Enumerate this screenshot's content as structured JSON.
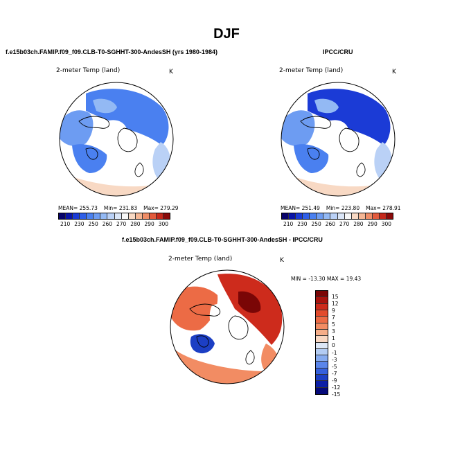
{
  "figure": {
    "season": "DJF"
  },
  "chart_data": [
    {
      "type": "heatmap",
      "projection": "north polar stereographic",
      "title": "f.e15b03ch.FAMIP.f09_f09.CLB-T0-SGHHT-300-AndesSH (yrs 1980-1984)",
      "variable": "2-meter Temp (land)",
      "units": "K",
      "stats": {
        "mean_label": "MEAN= 255.73",
        "min_label": "Min= 231.83",
        "max_label": "Max= 279.29",
        "mean": 255.73,
        "min": 231.83,
        "max": 279.29
      },
      "colorbar": {
        "orientation": "horizontal",
        "tick_labels": [
          "210",
          "230",
          "250",
          "260",
          "270",
          "280",
          "290",
          "300"
        ],
        "levels": [
          210,
          220,
          230,
          240,
          250,
          255,
          260,
          265,
          270,
          275,
          280,
          285,
          290,
          295,
          300
        ],
        "colors": [
          "#08036b",
          "#0a14a8",
          "#1b3bd6",
          "#2f5fe8",
          "#4a80f0",
          "#6d9cf2",
          "#93b9f4",
          "#bad1f6",
          "#dbe6f7",
          "#f7f7f7",
          "#f8d9c4",
          "#f5b694",
          "#ef8d67",
          "#e25a3c",
          "#c5291c",
          "#8a0b0b"
        ]
      }
    },
    {
      "type": "heatmap",
      "projection": "north polar stereographic",
      "title": "IPCC/CRU",
      "variable": "2-meter Temp (land)",
      "units": "K",
      "stats": {
        "mean_label": "MEAN= 251.49",
        "min_label": "Min= 223.80",
        "max_label": "Max= 278.91",
        "mean": 251.49,
        "min": 223.8,
        "max": 278.91
      },
      "colorbar": {
        "orientation": "horizontal",
        "tick_labels": [
          "210",
          "230",
          "250",
          "260",
          "270",
          "280",
          "290",
          "300"
        ],
        "levels": [
          210,
          220,
          230,
          240,
          250,
          255,
          260,
          265,
          270,
          275,
          280,
          285,
          290,
          295,
          300
        ],
        "colors": [
          "#08036b",
          "#0a14a8",
          "#1b3bd6",
          "#2f5fe8",
          "#4a80f0",
          "#6d9cf2",
          "#93b9f4",
          "#bad1f6",
          "#dbe6f7",
          "#f7f7f7",
          "#f8d9c4",
          "#f5b694",
          "#ef8d67",
          "#e25a3c",
          "#c5291c",
          "#8a0b0b"
        ]
      }
    },
    {
      "type": "heatmap",
      "projection": "north polar stereographic",
      "title": "f.e15b03ch.FAMIP.f09_f09.CLB-T0-SGHHT-300-AndesSH - IPCC/CRU",
      "variable": "2-meter Temp (land)",
      "units": "K",
      "stats": {
        "minmax_label": "MIN = -13.30 MAX =  19.43",
        "min": -13.3,
        "max": 19.43
      },
      "colorbar": {
        "orientation": "vertical",
        "tick_labels": [
          "15",
          "12",
          "9",
          "7",
          "5",
          "3",
          "1",
          "0",
          "-1",
          "-3",
          "-5",
          "-7",
          "-9",
          "-12",
          "-15"
        ],
        "levels": [
          15,
          12,
          9,
          7,
          5,
          3,
          1,
          0,
          -1,
          -3,
          -5,
          -7,
          -9,
          -12,
          -15
        ],
        "colors": [
          "#7a0606",
          "#a8140f",
          "#cd2b1c",
          "#e24b2c",
          "#ec6b45",
          "#f28c63",
          "#f6ae89",
          "#f9d8c3",
          "#dde7f6",
          "#b3ccf3",
          "#86abef",
          "#5a85ea",
          "#3560dc",
          "#1c3fc4",
          "#0c1fa6",
          "#050a7a"
        ]
      }
    }
  ]
}
